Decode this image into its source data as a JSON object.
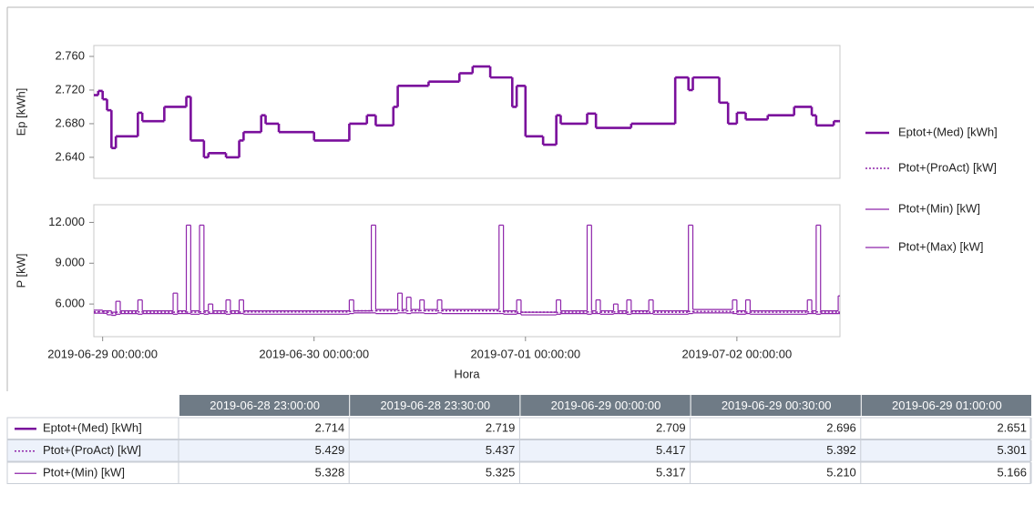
{
  "chart_data": [
    {
      "type": "step",
      "ylabel": "Ep [kWh]",
      "xlim": [
        "2019-06-28 23:00:00",
        "2019-07-02 11:42:00"
      ],
      "ylim": [
        2.615,
        2.773
      ],
      "yticks": [
        {
          "value": 2.64,
          "label": "2.640"
        },
        {
          "value": 2.68,
          "label": "2.680"
        },
        {
          "value": 2.72,
          "label": "2.720"
        },
        {
          "value": 2.76,
          "label": "2.760"
        }
      ],
      "x": [
        "2019-06-28 23:00:00",
        "2019-06-28 23:30:00",
        "2019-06-29 00:00:00",
        "2019-06-29 00:30:00",
        "2019-06-29 01:00:00",
        "2019-06-29 01:30:00",
        "2019-06-29 04:00:00",
        "2019-06-29 04:30:00",
        "2019-06-29 07:00:00",
        "2019-06-29 09:30:00",
        "2019-06-29 10:00:00",
        "2019-06-29 11:30:00",
        "2019-06-29 12:00:00",
        "2019-06-29 14:00:00",
        "2019-06-29 15:30:00",
        "2019-06-29 16:00:00",
        "2019-06-29 18:00:00",
        "2019-06-29 18:30:00",
        "2019-06-29 20:00:00",
        "2019-06-30 00:00:00",
        "2019-06-30 04:00:00",
        "2019-06-30 06:00:00",
        "2019-06-30 07:00:00",
        "2019-06-30 09:00:00",
        "2019-06-30 09:30:00",
        "2019-06-30 13:00:00",
        "2019-06-30 16:30:00",
        "2019-06-30 18:00:00",
        "2019-06-30 20:00:00",
        "2019-06-30 22:30:00",
        "2019-06-30 23:00:00",
        "2019-07-01 00:00:00",
        "2019-07-01 02:00:00",
        "2019-07-01 03:30:00",
        "2019-07-01 04:00:00",
        "2019-07-01 07:00:00",
        "2019-07-01 08:00:00",
        "2019-07-01 12:00:00",
        "2019-07-01 17:00:00",
        "2019-07-01 18:30:00",
        "2019-07-01 19:00:00",
        "2019-07-01 22:00:00",
        "2019-07-01 23:00:00",
        "2019-07-02 00:00:00",
        "2019-07-02 01:00:00",
        "2019-07-02 03:30:00",
        "2019-07-02 06:30:00",
        "2019-07-02 08:30:00",
        "2019-07-02 09:00:00",
        "2019-07-02 11:00:00",
        "2019-07-02 11:30:00"
      ],
      "series": [
        {
          "name": "Eptot+(Med) [kWh]",
          "color": "#7a0f9c",
          "line_style": "thick",
          "values": [
            2.714,
            2.719,
            2.709,
            2.696,
            2.651,
            2.665,
            2.693,
            2.683,
            2.7,
            2.712,
            2.66,
            2.64,
            2.645,
            2.64,
            2.66,
            2.67,
            2.69,
            2.68,
            2.67,
            2.66,
            2.68,
            2.69,
            2.678,
            2.7,
            2.725,
            2.73,
            2.74,
            2.748,
            2.735,
            2.7,
            2.725,
            2.665,
            2.655,
            2.69,
            2.68,
            2.692,
            2.675,
            2.68,
            2.735,
            2.72,
            2.735,
            2.705,
            2.68,
            2.693,
            2.685,
            2.69,
            2.7,
            2.69,
            2.678,
            2.683,
            2.683
          ]
        }
      ]
    },
    {
      "type": "step",
      "ylabel": "P [kW]",
      "xlabel": "Hora",
      "xlim": [
        "2019-06-28 23:00:00",
        "2019-07-02 11:42:00"
      ],
      "xticks": [
        "2019-06-29 00:00:00",
        "2019-06-30 00:00:00",
        "2019-07-01 00:00:00",
        "2019-07-02 00:00:00"
      ],
      "ylim": [
        3.6,
        13.3
      ],
      "yticks": [
        {
          "value": 6,
          "label": "6.000"
        },
        {
          "value": 9,
          "label": "9.000"
        },
        {
          "value": 12,
          "label": "12.000"
        }
      ],
      "x": [
        "2019-06-28 23:00:00",
        "2019-06-28 23:30:00",
        "2019-06-29 00:00:00",
        "2019-06-29 00:30:00",
        "2019-06-29 01:00:00",
        "2019-06-29 01:30:00",
        "2019-06-29 02:00:00",
        "2019-06-29 04:00:00",
        "2019-06-29 04:30:00",
        "2019-06-29 08:00:00",
        "2019-06-29 08:30:00",
        "2019-06-29 09:30:00",
        "2019-06-29 10:00:00",
        "2019-06-29 11:00:00",
        "2019-06-29 11:30:00",
        "2019-06-29 12:00:00",
        "2019-06-29 12:30:00",
        "2019-06-29 14:00:00",
        "2019-06-29 14:30:00",
        "2019-06-29 15:30:00",
        "2019-06-29 16:00:00",
        "2019-06-30 04:00:00",
        "2019-06-30 04:30:00",
        "2019-06-30 06:30:00",
        "2019-06-30 07:00:00",
        "2019-06-30 09:30:00",
        "2019-06-30 10:00:00",
        "2019-06-30 10:30:00",
        "2019-06-30 11:00:00",
        "2019-06-30 12:00:00",
        "2019-06-30 12:30:00",
        "2019-06-30 14:00:00",
        "2019-06-30 14:30:00",
        "2019-06-30 21:00:00",
        "2019-06-30 21:30:00",
        "2019-06-30 23:00:00",
        "2019-06-30 23:30:00",
        "2019-07-01 03:30:00",
        "2019-07-01 04:00:00",
        "2019-07-01 07:00:00",
        "2019-07-01 07:30:00",
        "2019-07-01 08:00:00",
        "2019-07-01 08:30:00",
        "2019-07-01 10:00:00",
        "2019-07-01 10:30:00",
        "2019-07-01 11:30:00",
        "2019-07-01 12:00:00",
        "2019-07-01 14:00:00",
        "2019-07-01 14:30:00",
        "2019-07-01 18:30:00",
        "2019-07-01 19:00:00",
        "2019-07-01 23:30:00",
        "2019-07-02 00:00:00",
        "2019-07-02 01:00:00",
        "2019-07-02 01:30:00",
        "2019-07-02 08:00:00",
        "2019-07-02 08:30:00",
        "2019-07-02 09:00:00",
        "2019-07-02 09:30:00",
        "2019-07-02 11:30:00"
      ],
      "series": [
        {
          "name": "Ptot+(ProAct) [kW]",
          "color": "#8e24aa",
          "line_style": "dotted",
          "values": [
            5.429,
            5.437,
            5.417,
            5.392,
            5.301,
            5.4,
            5.4,
            5.42,
            5.4,
            5.4,
            5.42,
            5.4,
            5.4,
            5.42,
            5.4,
            5.4,
            5.4,
            5.42,
            5.4,
            5.4,
            5.42,
            5.45,
            5.5,
            5.5,
            5.5,
            5.52,
            5.5,
            5.5,
            5.5,
            5.52,
            5.5,
            5.5,
            5.5,
            5.45,
            5.42,
            5.4,
            5.4,
            5.38,
            5.4,
            5.42,
            5.4,
            5.4,
            5.4,
            5.42,
            5.4,
            5.4,
            5.42,
            5.4,
            5.4,
            5.45,
            5.45,
            5.42,
            5.42,
            5.4,
            5.4,
            5.42,
            5.4,
            5.42,
            5.4,
            5.4
          ]
        },
        {
          "name": "Ptot+(Min) [kW]",
          "color": "#8e24aa",
          "line_style": "solid",
          "values": [
            5.328,
            5.325,
            5.317,
            5.21,
            5.166,
            5.25,
            5.3,
            5.25,
            5.3,
            5.25,
            5.3,
            5.3,
            5.25,
            5.3,
            5.25,
            5.3,
            5.3,
            5.25,
            5.3,
            5.3,
            5.25,
            5.3,
            5.35,
            5.35,
            5.3,
            5.35,
            5.35,
            5.3,
            5.35,
            5.35,
            5.3,
            5.35,
            5.3,
            5.3,
            5.25,
            5.3,
            5.2,
            5.25,
            5.3,
            5.25,
            5.3,
            5.3,
            5.25,
            5.3,
            5.3,
            5.25,
            5.3,
            5.3,
            5.25,
            5.3,
            5.35,
            5.3,
            5.25,
            5.3,
            5.25,
            5.3,
            5.3,
            5.25,
            5.3,
            5.3
          ]
        },
        {
          "name": "Ptot+(Max) [kW]",
          "color": "#8e24aa",
          "line_style": "solid",
          "values": [
            5.55,
            5.55,
            5.5,
            5.5,
            5.4,
            6.2,
            5.5,
            6.3,
            5.5,
            6.8,
            5.5,
            11.8,
            5.5,
            11.8,
            5.5,
            6.0,
            5.5,
            6.3,
            5.5,
            6.3,
            5.5,
            6.3,
            5.5,
            11.8,
            5.6,
            6.8,
            5.6,
            6.5,
            5.6,
            6.3,
            5.6,
            6.3,
            5.6,
            11.8,
            5.5,
            6.3,
            5.4,
            6.3,
            5.5,
            11.8,
            5.5,
            6.3,
            5.5,
            6.0,
            5.5,
            6.3,
            5.5,
            6.3,
            5.5,
            11.8,
            5.6,
            6.3,
            5.5,
            6.3,
            5.5,
            6.3,
            5.5,
            11.8,
            5.5,
            6.6
          ]
        }
      ]
    }
  ],
  "table": {
    "columns": [
      "2019-06-28 23:00:00",
      "2019-06-28 23:30:00",
      "2019-06-29 00:00:00",
      "2019-06-29 00:30:00",
      "2019-06-29 01:00:00"
    ],
    "rows": [
      {
        "name": "Eptot+(Med) [kWh]",
        "cells": [
          "2.714",
          "2.719",
          "2.709",
          "2.696",
          "2.651"
        ]
      },
      {
        "name": "Ptot+(ProAct) [kW]",
        "cells": [
          "5.429",
          "5.437",
          "5.417",
          "5.392",
          "5.301"
        ]
      },
      {
        "name": "Ptot+(Min) [kW]",
        "cells": [
          "5.328",
          "5.325",
          "5.317",
          "5.210",
          "5.166"
        ]
      }
    ]
  }
}
